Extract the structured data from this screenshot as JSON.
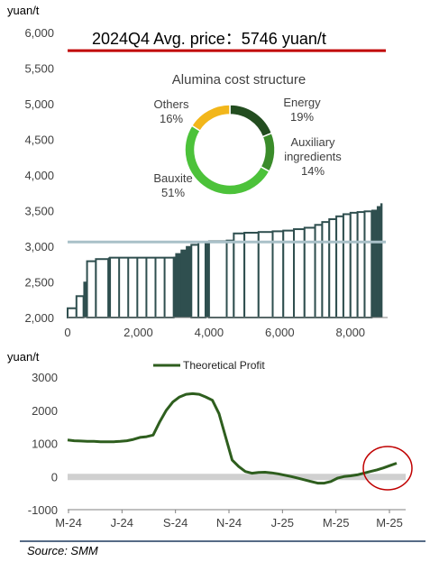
{
  "colors": {
    "cost_bar": "#2f4f4f",
    "avg_price_line": "#c00000",
    "current_price_line": "#a9c0c8",
    "profit_line": "#2e5e1e",
    "zero_band": "#d0d0d0",
    "highlight_circle": "#c00000",
    "source_rule": "#1f3a5f",
    "energy": "#234d20",
    "auxiliary": "#3a8c2a",
    "bauxite": "#4cc23a",
    "others": "#f2b61a"
  },
  "chart_data": [
    {
      "type": "bar",
      "subtype": "cost-curve",
      "ylabel": "yuan/t",
      "xlabel": "",
      "xlim": [
        0,
        9000
      ],
      "ylim": [
        2000,
        6000
      ],
      "x_ticks": [
        "0",
        "2,000",
        "4,000",
        "6,000",
        "8,000"
      ],
      "y_ticks": [
        "2,000",
        "2,500",
        "3,000",
        "3,500",
        "4,000",
        "4,500",
        "5,000",
        "5,500",
        "6,000"
      ],
      "avg_price_label": "2024Q4  Avg. price：5746 yuan/t",
      "avg_price": 5746,
      "reference_line": 3060,
      "grid": false,
      "steps": [
        {
          "x": 0,
          "value": 2130
        },
        {
          "x": 250,
          "value": 2300
        },
        {
          "x": 450,
          "value": 2500
        },
        {
          "x": 550,
          "value": 2790
        },
        {
          "x": 800,
          "value": 2820
        },
        {
          "x": 1150,
          "value": 2840
        },
        {
          "x": 1200,
          "value": 2840
        },
        {
          "x": 3000,
          "value": 2850
        },
        {
          "x": 3050,
          "value": 2900
        },
        {
          "x": 3200,
          "value": 2950
        },
        {
          "x": 3350,
          "value": 3000
        },
        {
          "x": 3500,
          "value": 3020
        },
        {
          "x": 3700,
          "value": 3060
        },
        {
          "x": 3900,
          "value": 3060
        },
        {
          "x": 4000,
          "value": 3070
        },
        {
          "x": 4500,
          "value": 3080
        },
        {
          "x": 4700,
          "value": 3180
        },
        {
          "x": 5000,
          "value": 3190
        },
        {
          "x": 5400,
          "value": 3200
        },
        {
          "x": 5800,
          "value": 3210
        },
        {
          "x": 6100,
          "value": 3220
        },
        {
          "x": 6400,
          "value": 3240
        },
        {
          "x": 6700,
          "value": 3260
        },
        {
          "x": 7000,
          "value": 3300
        },
        {
          "x": 7200,
          "value": 3340
        },
        {
          "x": 7400,
          "value": 3380
        },
        {
          "x": 7600,
          "value": 3420
        },
        {
          "x": 7800,
          "value": 3450
        },
        {
          "x": 8000,
          "value": 3470
        },
        {
          "x": 8200,
          "value": 3480
        },
        {
          "x": 8400,
          "value": 3490
        },
        {
          "x": 8600,
          "value": 3510
        },
        {
          "x": 8750,
          "value": 3560
        },
        {
          "x": 8850,
          "value": 3600
        }
      ],
      "x_end": 8900
    },
    {
      "type": "pie",
      "subtype": "donut",
      "title": "Alumina cost structure",
      "slices": [
        {
          "label": "Energy",
          "value": 19,
          "value_label": "19%",
          "color_key": "energy"
        },
        {
          "label": "Auxiliary ingredients",
          "value": 14,
          "value_label": "14%",
          "color_key": "auxiliary"
        },
        {
          "label": "Bauxite",
          "value": 51,
          "value_label": "51%",
          "color_key": "bauxite"
        },
        {
          "label": "Others",
          "value": 16,
          "value_label": "16%",
          "color_key": "others"
        }
      ]
    },
    {
      "type": "line",
      "ylabel": "yuan/t",
      "legend": "top-center",
      "ylim": [
        -1000,
        3000
      ],
      "y_ticks": [
        "3000",
        "2000",
        "1000",
        "0",
        "-1000"
      ],
      "x_tick_labels": [
        "M-24",
        "J-24",
        "S-24",
        "N-24",
        "J-25",
        "M-25",
        "M-25"
      ],
      "grid": false,
      "series": [
        {
          "name": "Theoretical Profit",
          "x": [
            0,
            2,
            4,
            6,
            8,
            10,
            12,
            14,
            16,
            18,
            20,
            22,
            24,
            26,
            28,
            30,
            32,
            34,
            36,
            38,
            40,
            42,
            44,
            46,
            48,
            50,
            52,
            54,
            56,
            58,
            60,
            62,
            64,
            66,
            68,
            70,
            72,
            74,
            76,
            78,
            80,
            82,
            84,
            86,
            88,
            90,
            92,
            94,
            96,
            98,
            100
          ],
          "values": [
            1100,
            1080,
            1070,
            1060,
            1060,
            1050,
            1050,
            1050,
            1060,
            1080,
            1120,
            1180,
            1200,
            1250,
            1650,
            2000,
            2250,
            2400,
            2480,
            2500,
            2480,
            2400,
            2300,
            1900,
            1200,
            500,
            300,
            150,
            100,
            120,
            130,
            110,
            80,
            40,
            0,
            -50,
            -100,
            -150,
            -200,
            -200,
            -150,
            -50,
            0,
            20,
            50,
            100,
            150,
            200,
            260,
            330,
            400
          ]
        }
      ]
    }
  ],
  "source": "Source: SMM"
}
